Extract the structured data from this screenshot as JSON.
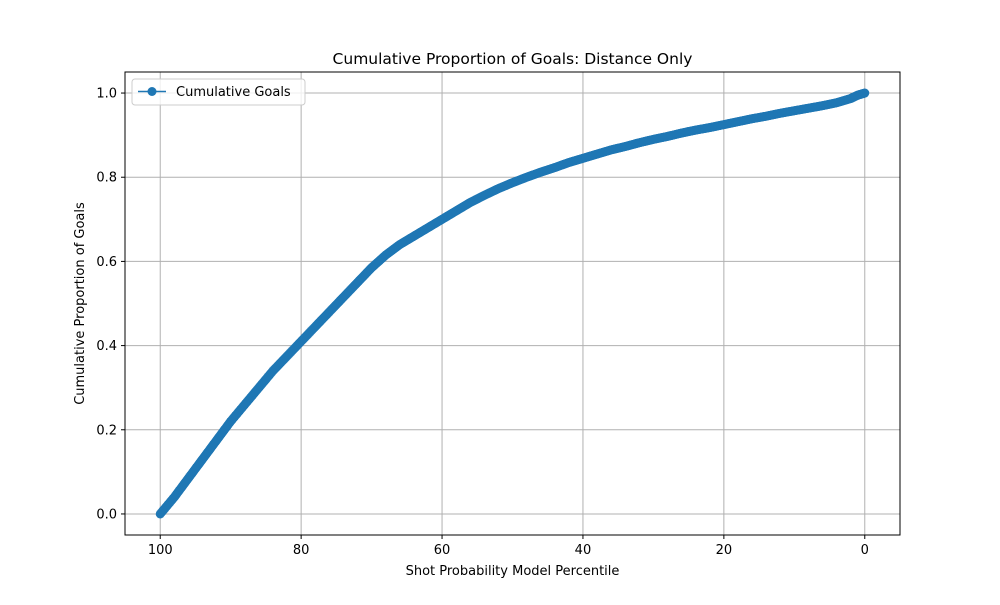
{
  "chart_data": {
    "type": "line",
    "title": "Cumulative Proportion of Goals: Distance Only",
    "xlabel": "Shot Probability Model Percentile",
    "ylabel": "Cumulative Proportion of Goals",
    "xlim": [
      105,
      -5
    ],
    "ylim": [
      -0.05,
      1.05
    ],
    "x_reversed": true,
    "grid": true,
    "legend_position": "upper-left",
    "x_ticks": [
      100,
      80,
      60,
      40,
      20,
      0
    ],
    "x_tick_labels": [
      "100",
      "80",
      "60",
      "40",
      "20",
      "0"
    ],
    "y_ticks": [
      0.0,
      0.2,
      0.4,
      0.6,
      0.8,
      1.0
    ],
    "y_tick_labels": [
      "0.0",
      "0.2",
      "0.4",
      "0.6",
      "0.8",
      "1.0"
    ],
    "series": [
      {
        "name": "Cumulative Goals",
        "color": "#1f77b4",
        "marker": "circle",
        "x": [
          100,
          98,
          96,
          94,
          92,
          90,
          88,
          86,
          84,
          82,
          80,
          78,
          76,
          74,
          72,
          70,
          68,
          66,
          64,
          62,
          60,
          58,
          56,
          54,
          52,
          50,
          48,
          46,
          44,
          42,
          40,
          38,
          36,
          34,
          32,
          30,
          28,
          26,
          24,
          22,
          20,
          18,
          16,
          14,
          12,
          10,
          8,
          6,
          4,
          2,
          1,
          0
        ],
        "y": [
          0.0,
          0.04,
          0.085,
          0.13,
          0.175,
          0.22,
          0.26,
          0.3,
          0.34,
          0.375,
          0.41,
          0.445,
          0.48,
          0.515,
          0.55,
          0.585,
          0.615,
          0.64,
          0.66,
          0.68,
          0.7,
          0.72,
          0.74,
          0.757,
          0.773,
          0.787,
          0.8,
          0.812,
          0.823,
          0.835,
          0.845,
          0.855,
          0.865,
          0.873,
          0.882,
          0.89,
          0.897,
          0.905,
          0.912,
          0.918,
          0.925,
          0.932,
          0.939,
          0.945,
          0.952,
          0.958,
          0.964,
          0.97,
          0.977,
          0.987,
          0.995,
          1.0
        ]
      }
    ]
  }
}
